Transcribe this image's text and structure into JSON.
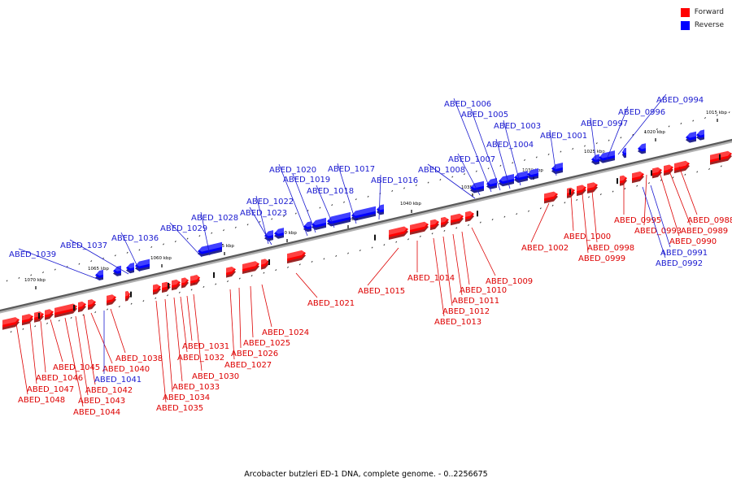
{
  "legend": {
    "forward": {
      "label": "Forward",
      "color": "#ff0000"
    },
    "reverse": {
      "label": "Reverse",
      "color": "#0000ff"
    }
  },
  "caption": "Arcobacter butzleri ED-1 DNA, complete genome. - 0..2256675",
  "ticks": [
    "1015 kbp",
    "1020 kbp",
    "1025 kbp",
    "1030 kbp",
    "1035 kbp",
    "1040 kbp",
    "1045 kbp",
    "1050 kbp",
    "1055 kbp",
    "1060 kbp",
    "1065 kbp",
    "1070 kbp"
  ],
  "forward_genes": [
    "ABED_0988",
    "ABED_0989",
    "ABED_0990",
    "ABED_0993",
    "ABED_0995",
    "ABED_0998",
    "ABED_0999",
    "ABED_1000",
    "ABED_1002",
    "ABED_1009",
    "ABED_1010",
    "ABED_1011",
    "ABED_1012",
    "ABED_1013",
    "ABED_1014",
    "ABED_1015",
    "ABED_1021",
    "ABED_1024",
    "ABED_1025",
    "ABED_1026",
    "ABED_1027",
    "ABED_1030",
    "ABED_1031",
    "ABED_1032",
    "ABED_1033",
    "ABED_1034",
    "ABED_1035",
    "ABED_1038",
    "ABED_1040",
    "ABED_1042",
    "ABED_1043",
    "ABED_1044",
    "ABED_1045",
    "ABED_1046",
    "ABED_1047",
    "ABED_1048"
  ],
  "reverse_genes": [
    "ABED_0991",
    "ABED_0992",
    "ABED_0994",
    "ABED_0996",
    "ABED_0997",
    "ABED_1001",
    "ABED_1003",
    "ABED_1004",
    "ABED_1005",
    "ABED_1006",
    "ABED_1007",
    "ABED_1008",
    "ABED_1016",
    "ABED_1017",
    "ABED_1018",
    "ABED_1019",
    "ABED_1020",
    "ABED_1022",
    "ABED_1023",
    "ABED_1028",
    "ABED_1029",
    "ABED_1036",
    "ABED_1037",
    "ABED_1039",
    "ABED_1041"
  ]
}
